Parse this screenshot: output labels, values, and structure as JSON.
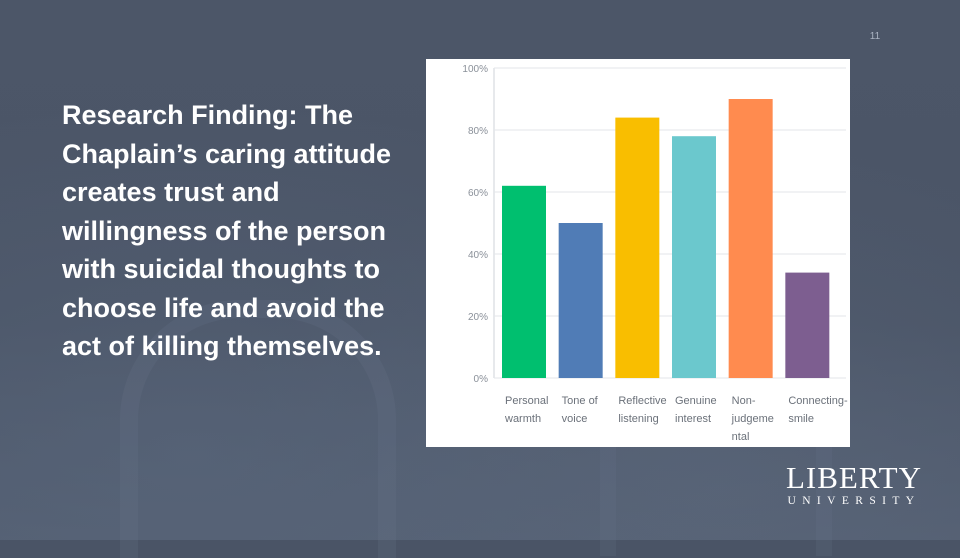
{
  "slide": {
    "number": "11",
    "body_text": "Research Finding: The Chaplain’s caring attitude creates trust and willingness of the person with suicidal thoughts to choose life and avoid the act of killing themselves."
  },
  "logo": {
    "line1": "LIBERTY",
    "line2": "UNIVERSITY"
  },
  "chart_data": {
    "type": "bar",
    "title": "",
    "xlabel": "",
    "ylabel": "",
    "ylim": [
      0,
      100
    ],
    "yticks": [
      0,
      20,
      40,
      60,
      80,
      100
    ],
    "ytick_labels": [
      "0%",
      "20%",
      "40%",
      "60%",
      "80%",
      "100%"
    ],
    "grid": true,
    "categories": [
      [
        "Personal",
        "warmth"
      ],
      [
        "Tone of",
        "voice"
      ],
      [
        "Reflective",
        "listening"
      ],
      [
        "Genuine",
        "interest"
      ],
      [
        "Non-",
        "judgeme",
        "ntal"
      ],
      [
        "Connecting-",
        "smile"
      ]
    ],
    "values": [
      62,
      50,
      84,
      78,
      90,
      34
    ],
    "colors": [
      "#00bf6f",
      "#507cb6",
      "#f9be00",
      "#6bc8cd",
      "#ff8b4f",
      "#7d5e90"
    ]
  }
}
